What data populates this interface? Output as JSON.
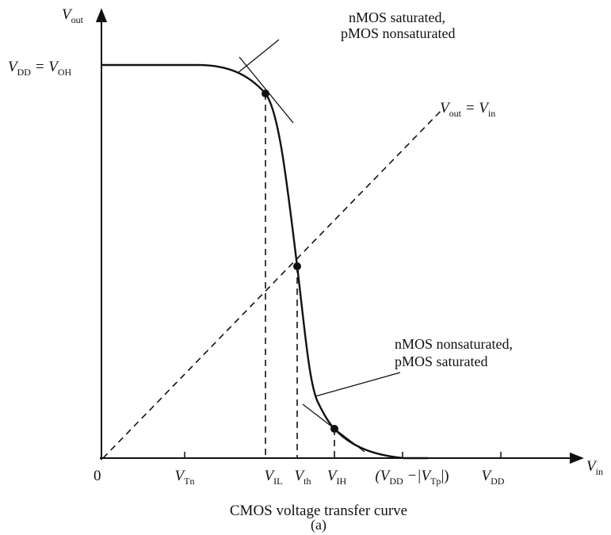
{
  "axes": {
    "y_label": [
      "V",
      "out"
    ],
    "x_label": [
      "V",
      "in"
    ]
  },
  "level_label": [
    "V",
    "DD",
    " = V",
    "OH"
  ],
  "diagonal_label": [
    "V",
    "out",
    " = V",
    "in"
  ],
  "annotations": {
    "upper": [
      "nMOS saturated,",
      "pMOS nonsaturated"
    ],
    "lower": [
      "nMOS nonsaturated,",
      "pMOS saturated"
    ]
  },
  "x_ticks": [
    [
      "0"
    ],
    [
      "V",
      "Tn"
    ],
    [
      "V",
      "IL"
    ],
    [
      "V",
      "th"
    ],
    [
      "V",
      "IH"
    ],
    [
      "(V",
      "DD",
      " −|V",
      "Tp",
      "|)"
    ],
    [
      "V",
      "DD"
    ]
  ],
  "caption": "CMOS voltage transfer curve",
  "sub_caption": "(a)"
}
